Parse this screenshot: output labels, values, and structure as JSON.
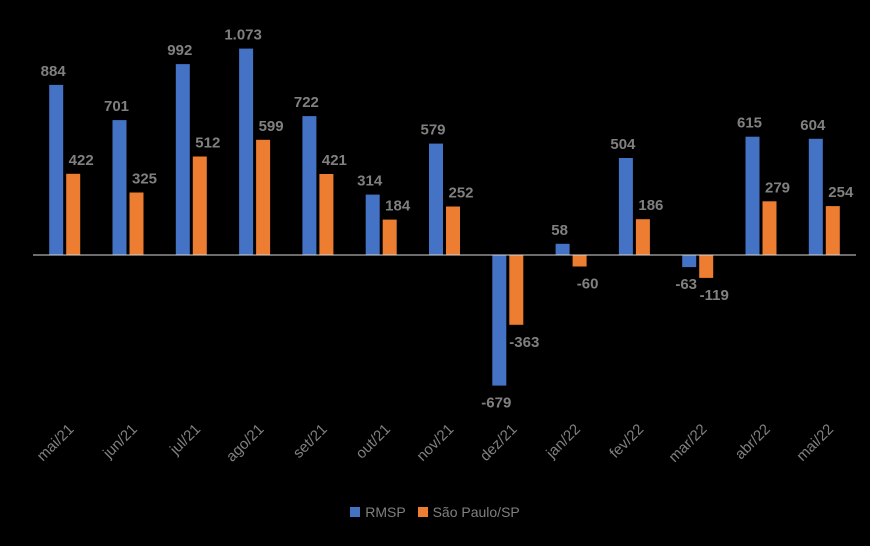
{
  "chart_data": {
    "type": "bar",
    "categories": [
      "mai/21",
      "jun/21",
      "jul/21",
      "ago/21",
      "set/21",
      "out/21",
      "nov/21",
      "dez/21",
      "jan/22",
      "fev/22",
      "mar/22",
      "abr/22",
      "mai/22"
    ],
    "series": [
      {
        "name": "RMSP",
        "color": "#4472C4",
        "values": [
          884,
          701,
          992,
          1073,
          722,
          314,
          579,
          -679,
          58,
          504,
          -63,
          615,
          604
        ],
        "labels": [
          "884",
          "701",
          "992",
          "1.073",
          "722",
          "314",
          "579",
          "-679",
          "58",
          "504",
          "-63",
          "615",
          "604"
        ]
      },
      {
        "name": "São Paulo/SP",
        "color": "#ED7D31",
        "values": [
          422,
          325,
          512,
          599,
          421,
          184,
          252,
          -363,
          -60,
          186,
          -119,
          279,
          254
        ],
        "labels": [
          "422",
          "325",
          "512",
          "599",
          "421",
          "184",
          "252",
          "-363",
          "-60",
          "186",
          "-119",
          "279",
          "254"
        ]
      }
    ],
    "title": "",
    "xlabel": "",
    "ylabel": "",
    "ylim": [
      -679,
      1073
    ],
    "grid": false,
    "legend_position": "bottom"
  }
}
